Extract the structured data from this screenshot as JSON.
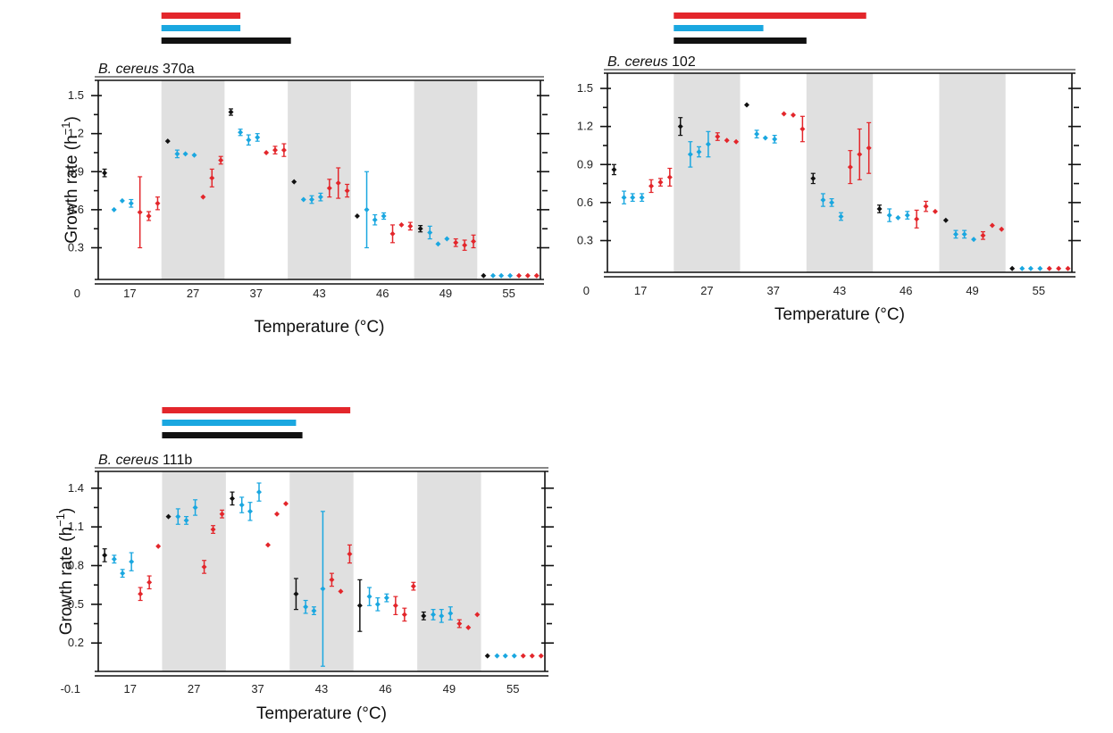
{
  "colors": {
    "black": "#111111",
    "blue": "#1aa7e0",
    "red": "#e3262b",
    "shade": "#e0e0e0"
  },
  "chart_data": [
    {
      "type": "scatter",
      "title_italic": "B. cereus",
      "title_strain": "370a",
      "xlabel": "Temperature (°C)",
      "ylabel": "Growth rate (h",
      "ylabel_sup": "−1",
      "ylabel_close": ")",
      "ylim": [
        0.05,
        1.62
      ],
      "yticks": [
        0.3,
        0.6,
        0.9,
        1.2,
        1.5
      ],
      "ytick_labels": [
        "0.3",
        "0.6",
        "0.9",
        "1.2",
        "1.5"
      ],
      "y_bottom_label": "0",
      "categories": [
        "17",
        "27",
        "37",
        "43",
        "46",
        "49",
        "55"
      ],
      "shaded_groups": [
        1,
        3,
        5
      ],
      "top_bars": [
        {
          "color": "red",
          "extent": 1.25
        },
        {
          "color": "blue",
          "extent": 1.25
        },
        {
          "color": "black",
          "extent": 2.05
        }
      ],
      "series": [
        {
          "color": "black",
          "points": [
            [
              0.1,
              0.89,
              0.03
            ],
            [
              1.1,
              1.14,
              0.0
            ],
            [
              2.1,
              1.37,
              0.025
            ],
            [
              3.1,
              0.82,
              0.0
            ],
            [
              4.1,
              0.55,
              0.0
            ],
            [
              5.1,
              0.45,
              0.025
            ],
            [
              6.1,
              0.08,
              0.0
            ]
          ]
        },
        {
          "color": "blue",
          "points": [
            [
              0.25,
              0.6,
              0.0
            ],
            [
              0.38,
              0.67,
              0.0
            ],
            [
              0.52,
              0.65,
              0.03
            ],
            [
              1.25,
              1.04,
              0.03
            ],
            [
              1.38,
              1.04,
              0.0
            ],
            [
              1.52,
              1.03,
              0.0
            ],
            [
              2.25,
              1.21,
              0.025
            ],
            [
              2.38,
              1.15,
              0.04
            ],
            [
              2.52,
              1.17,
              0.03
            ],
            [
              3.25,
              0.68,
              0.0
            ],
            [
              3.38,
              0.68,
              0.03
            ],
            [
              3.52,
              0.7,
              0.03
            ],
            [
              4.25,
              0.6,
              0.3
            ],
            [
              4.38,
              0.52,
              0.04
            ],
            [
              4.52,
              0.55,
              0.025
            ],
            [
              5.25,
              0.42,
              0.05
            ],
            [
              5.38,
              0.33,
              0.0
            ],
            [
              5.52,
              0.37,
              0.0
            ],
            [
              6.25,
              0.08,
              0.0
            ],
            [
              6.38,
              0.08,
              0.0
            ],
            [
              6.52,
              0.08,
              0.0
            ]
          ]
        },
        {
          "color": "red",
          "points": [
            [
              0.66,
              0.58,
              0.28
            ],
            [
              0.8,
              0.55,
              0.035
            ],
            [
              0.94,
              0.65,
              0.05
            ],
            [
              1.66,
              0.7,
              0.0
            ],
            [
              1.8,
              0.85,
              0.07
            ],
            [
              1.94,
              0.99,
              0.03
            ],
            [
              2.66,
              1.05,
              0.0
            ],
            [
              2.8,
              1.07,
              0.03
            ],
            [
              2.94,
              1.07,
              0.05
            ],
            [
              3.66,
              0.77,
              0.07
            ],
            [
              3.8,
              0.81,
              0.12
            ],
            [
              3.94,
              0.75,
              0.05
            ],
            [
              4.66,
              0.41,
              0.07
            ],
            [
              4.8,
              0.48,
              0.0
            ],
            [
              4.94,
              0.47,
              0.03
            ],
            [
              5.66,
              0.34,
              0.03
            ],
            [
              5.8,
              0.32,
              0.04
            ],
            [
              5.94,
              0.35,
              0.05
            ],
            [
              6.66,
              0.08,
              0.0
            ],
            [
              6.8,
              0.08,
              0.0
            ],
            [
              6.94,
              0.08,
              0.0
            ]
          ]
        }
      ]
    },
    {
      "type": "scatter",
      "title_italic": "B. cereus",
      "title_strain": "102",
      "xlabel": "Temperature (°C)",
      "ylabel": "",
      "ylim": [
        0.05,
        1.62
      ],
      "yticks": [
        0.3,
        0.6,
        0.9,
        1.2,
        1.5
      ],
      "ytick_labels": [
        "0.3",
        "0.6",
        "0.9",
        "1.2",
        "1.5"
      ],
      "y_bottom_label": "0",
      "categories": [
        "17",
        "27",
        "37",
        "43",
        "46",
        "49",
        "55"
      ],
      "shaded_groups": [
        1,
        3,
        5
      ],
      "top_bars": [
        {
          "color": "red",
          "extent": 2.9
        },
        {
          "color": "blue",
          "extent": 1.35
        },
        {
          "color": "black",
          "extent": 2.0
        }
      ],
      "series": [
        {
          "color": "black",
          "points": [
            [
              0.1,
              0.86,
              0.04
            ],
            [
              1.1,
              1.2,
              0.07
            ],
            [
              2.1,
              1.37,
              0.0
            ],
            [
              3.1,
              0.79,
              0.04
            ],
            [
              4.1,
              0.55,
              0.03
            ],
            [
              5.1,
              0.46,
              0.0
            ],
            [
              6.1,
              0.08,
              0.0
            ]
          ]
        },
        {
          "color": "blue",
          "points": [
            [
              0.25,
              0.64,
              0.05
            ],
            [
              0.38,
              0.64,
              0.03
            ],
            [
              0.52,
              0.64,
              0.03
            ],
            [
              1.25,
              0.98,
              0.1
            ],
            [
              1.38,
              1.0,
              0.04
            ],
            [
              1.52,
              1.06,
              0.1
            ],
            [
              2.25,
              1.14,
              0.03
            ],
            [
              2.38,
              1.11,
              0.0
            ],
            [
              2.52,
              1.1,
              0.03
            ],
            [
              3.25,
              0.62,
              0.05
            ],
            [
              3.38,
              0.6,
              0.03
            ],
            [
              3.52,
              0.49,
              0.03
            ],
            [
              4.25,
              0.5,
              0.05
            ],
            [
              4.38,
              0.48,
              0.0
            ],
            [
              4.52,
              0.5,
              0.03
            ],
            [
              5.25,
              0.35,
              0.03
            ],
            [
              5.38,
              0.35,
              0.03
            ],
            [
              5.52,
              0.31,
              0.0
            ],
            [
              6.25,
              0.08,
              0.0
            ],
            [
              6.38,
              0.08,
              0.0
            ],
            [
              6.52,
              0.08,
              0.0
            ]
          ]
        },
        {
          "color": "red",
          "points": [
            [
              0.66,
              0.73,
              0.05
            ],
            [
              0.8,
              0.76,
              0.03
            ],
            [
              0.94,
              0.8,
              0.07
            ],
            [
              1.66,
              1.12,
              0.03
            ],
            [
              1.8,
              1.09,
              0.0
            ],
            [
              1.94,
              1.08,
              0.0
            ],
            [
              2.66,
              1.3,
              0.0
            ],
            [
              2.8,
              1.29,
              0.0
            ],
            [
              2.94,
              1.18,
              0.1
            ],
            [
              3.66,
              0.88,
              0.13
            ],
            [
              3.8,
              0.98,
              0.2
            ],
            [
              3.94,
              1.03,
              0.2
            ],
            [
              4.66,
              0.47,
              0.07
            ],
            [
              4.8,
              0.57,
              0.04
            ],
            [
              4.94,
              0.53,
              0.0
            ],
            [
              5.66,
              0.34,
              0.03
            ],
            [
              5.8,
              0.42,
              0.0
            ],
            [
              5.94,
              0.39,
              0.0
            ],
            [
              6.66,
              0.08,
              0.0
            ],
            [
              6.8,
              0.08,
              0.0
            ],
            [
              6.94,
              0.08,
              0.0
            ]
          ]
        }
      ]
    },
    {
      "type": "scatter",
      "title_italic": "B. cereus",
      "title_strain": "111b",
      "xlabel": "Temperature (°C)",
      "ylabel": "Growth rate (h",
      "ylabel_sup": "−1",
      "ylabel_close": ")",
      "ylim": [
        -0.02,
        1.53
      ],
      "yticks": [
        0.2,
        0.5,
        0.8,
        1.1,
        1.4
      ],
      "ytick_labels": [
        "0.2",
        "0.5",
        "0.8",
        "1.1",
        "1.4"
      ],
      "y_bottom_label": "-0.1",
      "categories": [
        "17",
        "27",
        "37",
        "43",
        "46",
        "49",
        "55"
      ],
      "shaded_groups": [
        1,
        3,
        5
      ],
      "top_bars": [
        {
          "color": "red",
          "extent": 2.95
        },
        {
          "color": "blue",
          "extent": 2.1
        },
        {
          "color": "black",
          "extent": 2.2
        }
      ],
      "series": [
        {
          "color": "black",
          "points": [
            [
              0.1,
              0.88,
              0.05
            ],
            [
              1.1,
              1.18,
              0.0
            ],
            [
              2.1,
              1.32,
              0.05
            ],
            [
              3.1,
              0.58,
              0.12
            ],
            [
              4.1,
              0.49,
              0.2
            ],
            [
              5.1,
              0.41,
              0.03
            ],
            [
              6.1,
              0.1,
              0.0
            ]
          ]
        },
        {
          "color": "blue",
          "points": [
            [
              0.25,
              0.85,
              0.03
            ],
            [
              0.38,
              0.74,
              0.03
            ],
            [
              0.52,
              0.83,
              0.07
            ],
            [
              1.25,
              1.18,
              0.06
            ],
            [
              1.38,
              1.15,
              0.03
            ],
            [
              1.52,
              1.25,
              0.06
            ],
            [
              2.25,
              1.27,
              0.06
            ],
            [
              2.38,
              1.22,
              0.07
            ],
            [
              2.52,
              1.37,
              0.07
            ],
            [
              3.25,
              0.48,
              0.05
            ],
            [
              3.38,
              0.45,
              0.03
            ],
            [
              3.52,
              0.62,
              0.6
            ],
            [
              4.25,
              0.56,
              0.07
            ],
            [
              4.38,
              0.5,
              0.05
            ],
            [
              4.52,
              0.55,
              0.03
            ],
            [
              5.25,
              0.42,
              0.04
            ],
            [
              5.38,
              0.41,
              0.05
            ],
            [
              5.52,
              0.43,
              0.05
            ],
            [
              6.25,
              0.1,
              0.0
            ],
            [
              6.38,
              0.1,
              0.0
            ],
            [
              6.52,
              0.1,
              0.0
            ]
          ]
        },
        {
          "color": "red",
          "points": [
            [
              0.66,
              0.58,
              0.05
            ],
            [
              0.8,
              0.67,
              0.05
            ],
            [
              0.94,
              0.95,
              0.0
            ],
            [
              1.66,
              0.79,
              0.05
            ],
            [
              1.8,
              1.08,
              0.03
            ],
            [
              1.94,
              1.2,
              0.03
            ],
            [
              2.66,
              0.96,
              0.0
            ],
            [
              2.8,
              1.2,
              0.0
            ],
            [
              2.94,
              1.28,
              0.0
            ],
            [
              3.66,
              0.69,
              0.05
            ],
            [
              3.8,
              0.6,
              0.0
            ],
            [
              3.94,
              0.89,
              0.07
            ],
            [
              4.66,
              0.49,
              0.07
            ],
            [
              4.8,
              0.42,
              0.05
            ],
            [
              4.94,
              0.64,
              0.03
            ],
            [
              5.66,
              0.35,
              0.03
            ],
            [
              5.8,
              0.32,
              0.0
            ],
            [
              5.94,
              0.42,
              0.0
            ],
            [
              6.66,
              0.1,
              0.0
            ],
            [
              6.8,
              0.1,
              0.0
            ],
            [
              6.94,
              0.1,
              0.0
            ]
          ]
        }
      ]
    }
  ]
}
